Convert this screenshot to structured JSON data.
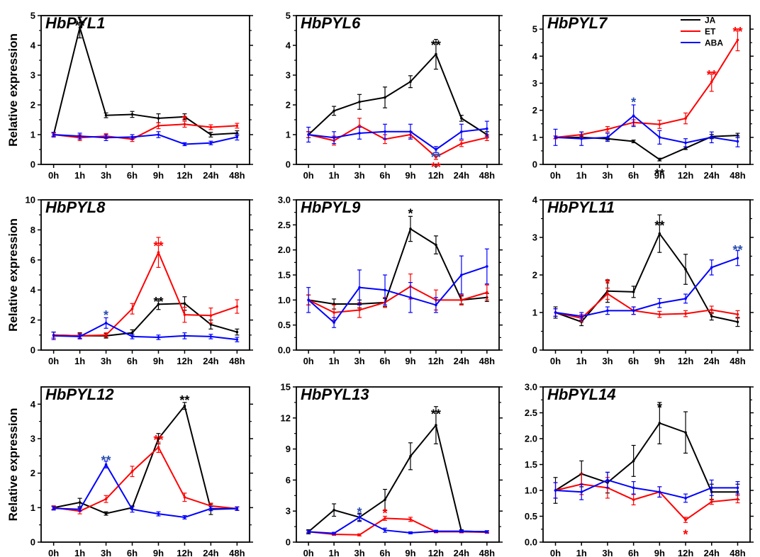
{
  "figure": {
    "ylabel": "Relative expression",
    "legend": [
      {
        "name": "JA",
        "color": "#000000"
      },
      {
        "name": "ET",
        "color": "#ff0000"
      },
      {
        "name": "ABA",
        "color": "#0000ff"
      }
    ]
  },
  "chart_data": [
    {
      "type": "line",
      "title": "HbPYL1",
      "ylabel": "Relative expression",
      "categories": [
        "0h",
        "1h",
        "3h",
        "6h",
        "9h",
        "12h",
        "24h",
        "48h"
      ],
      "ylim": [
        0,
        5
      ],
      "yticks": [
        0,
        1,
        2,
        3,
        4,
        5
      ],
      "ytick_labels": [
        "0",
        "1",
        "2",
        "3",
        "4",
        "5"
      ],
      "series": [
        {
          "name": "JA",
          "color": "#000000",
          "values": [
            1.0,
            4.6,
            1.65,
            1.68,
            1.55,
            1.6,
            1.0,
            1.05
          ],
          "errors": [
            0.05,
            0.35,
            0.08,
            0.1,
            0.15,
            0.1,
            0.08,
            0.08
          ]
        },
        {
          "name": "ET",
          "color": "#ff0000",
          "values": [
            1.0,
            0.9,
            0.95,
            0.85,
            1.3,
            1.35,
            1.25,
            1.3
          ],
          "errors": [
            0.05,
            0.1,
            0.08,
            0.08,
            0.1,
            0.1,
            0.08,
            0.08
          ]
        },
        {
          "name": "ABA",
          "color": "#0000ff",
          "values": [
            1.0,
            0.95,
            0.9,
            0.92,
            1.0,
            0.68,
            0.72,
            0.92
          ],
          "errors": [
            0.08,
            0.1,
            0.1,
            0.08,
            0.1,
            0.05,
            0.06,
            0.1
          ]
        }
      ],
      "annotations": [
        {
          "text": "**",
          "x": "1h",
          "y": 4.7,
          "color": "#000000"
        },
        {
          "text": "*",
          "x": "12h",
          "y": 1.55,
          "color": "#ff0000"
        }
      ]
    },
    {
      "type": "line",
      "title": "HbPYL6",
      "ylabel": "",
      "categories": [
        "0h",
        "1h",
        "3h",
        "6h",
        "9h",
        "12h",
        "24h",
        "48h"
      ],
      "ylim": [
        0,
        5
      ],
      "yticks": [
        0,
        1,
        2,
        3,
        4,
        5
      ],
      "ytick_labels": [
        "0",
        "1",
        "2",
        "3",
        "4",
        "5"
      ],
      "series": [
        {
          "name": "JA",
          "color": "#000000",
          "values": [
            1.0,
            1.8,
            2.1,
            2.25,
            2.78,
            3.7,
            1.55,
            1.0
          ],
          "errors": [
            0.1,
            0.15,
            0.25,
            0.35,
            0.2,
            0.5,
            0.1,
            0.1
          ]
        },
        {
          "name": "ET",
          "color": "#ff0000",
          "values": [
            1.0,
            0.8,
            1.3,
            0.85,
            1.0,
            0.25,
            0.7,
            0.9
          ],
          "errors": [
            0.1,
            0.15,
            0.25,
            0.15,
            0.1,
            0.08,
            0.1,
            0.1
          ]
        },
        {
          "name": "ABA",
          "color": "#0000ff",
          "values": [
            1.0,
            0.9,
            1.05,
            1.1,
            1.1,
            0.5,
            1.1,
            1.2
          ],
          "errors": [
            0.25,
            0.2,
            0.2,
            0.25,
            0.25,
            0.1,
            0.25,
            0.25
          ]
        }
      ],
      "annotations": [
        {
          "text": "**",
          "x": "12h",
          "y": 4.05,
          "color": "#000000"
        },
        {
          "text": "**",
          "x": "12h",
          "y": 0.28,
          "color": "#2a4fb0"
        },
        {
          "text": "**",
          "x": "12h",
          "y": -0.05,
          "color": "#ff0000"
        }
      ]
    },
    {
      "type": "line",
      "title": "HbPYL7",
      "ylabel": "",
      "categories": [
        "0h",
        "1h",
        "3h",
        "6h",
        "9h",
        "12h",
        "24h",
        "48h"
      ],
      "ylim": [
        0,
        5.5
      ],
      "yticks": [
        0,
        1,
        2,
        3,
        4,
        5
      ],
      "ytick_labels": [
        "0",
        "1",
        "2",
        "3",
        "4",
        "5"
      ],
      "series": [
        {
          "name": "JA",
          "color": "#000000",
          "values": [
            1.0,
            1.0,
            0.95,
            0.85,
            0.18,
            0.6,
            1.03,
            1.07
          ],
          "errors": [
            0.05,
            0.05,
            0.05,
            0.05,
            0.05,
            0.05,
            0.08,
            0.08
          ]
        },
        {
          "name": "ET",
          "color": "#ff0000",
          "values": [
            1.0,
            1.1,
            1.3,
            1.55,
            1.48,
            1.7,
            3.05,
            4.6
          ],
          "errors": [
            0.05,
            0.1,
            0.1,
            0.1,
            0.15,
            0.2,
            0.35,
            0.4
          ]
        },
        {
          "name": "ABA",
          "color": "#0000ff",
          "values": [
            1.0,
            0.95,
            1.0,
            1.8,
            1.0,
            0.8,
            1.0,
            0.85
          ],
          "errors": [
            0.3,
            0.25,
            0.15,
            0.4,
            0.25,
            0.15,
            0.2,
            0.2
          ]
        }
      ],
      "annotations": [
        {
          "text": "*",
          "x": "6h",
          "y": 2.35,
          "color": "#2a4fb0"
        },
        {
          "text": "**",
          "x": "9h",
          "y": -0.3,
          "color": "#000000"
        },
        {
          "text": "**",
          "x": "24h",
          "y": 3.35,
          "color": "#ff0000"
        },
        {
          "text": "**",
          "x": "48h",
          "y": 4.95,
          "color": "#ff0000"
        }
      ],
      "legend": [
        "JA",
        "ET",
        "ABA"
      ]
    },
    {
      "type": "line",
      "title": "HbPYL8",
      "ylabel": "Relative expression",
      "categories": [
        "0h",
        "1h",
        "3h",
        "6h",
        "9h",
        "12h",
        "24h",
        "48h"
      ],
      "ylim": [
        0,
        10
      ],
      "yticks": [
        0,
        2,
        4,
        6,
        8,
        10
      ],
      "ytick_labels": [
        "0",
        "2",
        "4",
        "6",
        "8",
        "10"
      ],
      "series": [
        {
          "name": "JA",
          "color": "#000000",
          "values": [
            1.0,
            0.95,
            0.95,
            1.15,
            3.05,
            3.1,
            1.7,
            1.2
          ],
          "errors": [
            0.2,
            0.2,
            0.15,
            0.2,
            0.35,
            0.45,
            0.3,
            0.2
          ]
        },
        {
          "name": "ET",
          "color": "#ff0000",
          "values": [
            1.0,
            0.95,
            1.0,
            2.75,
            6.5,
            2.35,
            2.3,
            2.9
          ],
          "errors": [
            0.2,
            0.15,
            0.15,
            0.35,
            1.0,
            0.5,
            0.5,
            0.45
          ]
        },
        {
          "name": "ABA",
          "color": "#0000ff",
          "values": [
            0.95,
            0.9,
            1.8,
            0.9,
            0.85,
            0.95,
            0.9,
            0.7
          ],
          "errors": [
            0.25,
            0.15,
            0.35,
            0.15,
            0.15,
            0.2,
            0.15,
            0.15
          ]
        }
      ],
      "annotations": [
        {
          "text": "*",
          "x": "3h",
          "y": 2.4,
          "color": "#2a4fb0"
        },
        {
          "text": "**",
          "x": "9h",
          "y": 7.0,
          "color": "#ff0000"
        },
        {
          "text": "**",
          "x": "9h",
          "y": 3.3,
          "color": "#000000"
        }
      ]
    },
    {
      "type": "line",
      "title": "HbPYL9",
      "ylabel": "",
      "categories": [
        "0h",
        "1h",
        "3h",
        "6h",
        "9h",
        "12h",
        "24h",
        "48h"
      ],
      "ylim": [
        0,
        3.0
      ],
      "yticks": [
        0,
        0.5,
        1.0,
        1.5,
        2.0,
        2.5,
        3.0
      ],
      "ytick_labels": [
        "0.0",
        "0.5",
        "1.0",
        "1.5",
        "2.0",
        "2.5",
        "3.0"
      ],
      "series": [
        {
          "name": "JA",
          "color": "#000000",
          "values": [
            1.0,
            0.92,
            0.92,
            0.95,
            2.42,
            2.1,
            1.0,
            1.05
          ],
          "errors": [
            0.1,
            0.1,
            0.08,
            0.08,
            0.25,
            0.18,
            0.08,
            0.08
          ]
        },
        {
          "name": "ET",
          "color": "#ff0000",
          "values": [
            1.0,
            0.75,
            0.8,
            0.95,
            1.27,
            1.0,
            1.0,
            1.15
          ],
          "errors": [
            0.1,
            0.15,
            0.15,
            0.1,
            0.25,
            0.2,
            0.1,
            0.15
          ]
        },
        {
          "name": "ABA",
          "color": "#0000ff",
          "values": [
            1.0,
            0.55,
            1.25,
            1.2,
            1.05,
            0.9,
            1.5,
            1.67
          ],
          "errors": [
            0.25,
            0.1,
            0.35,
            0.3,
            0.3,
            0.15,
            0.38,
            0.35
          ]
        }
      ],
      "annotations": [
        {
          "text": "*",
          "x": "9h",
          "y": 2.75,
          "color": "#000000"
        }
      ]
    },
    {
      "type": "line",
      "title": "HbPYL11",
      "ylabel": "",
      "categories": [
        "0h",
        "1h",
        "3h",
        "6h",
        "9h",
        "12h",
        "24h",
        "48h"
      ],
      "ylim": [
        0,
        4
      ],
      "yticks": [
        0,
        1,
        2,
        3,
        4
      ],
      "ytick_labels": [
        "0",
        "1",
        "2",
        "3",
        "4"
      ],
      "series": [
        {
          "name": "JA",
          "color": "#000000",
          "values": [
            1.0,
            0.75,
            1.57,
            1.55,
            3.1,
            2.15,
            0.9,
            0.75
          ],
          "errors": [
            0.15,
            0.1,
            0.3,
            0.15,
            0.5,
            0.4,
            0.1,
            0.12
          ]
        },
        {
          "name": "ET",
          "color": "#ff0000",
          "values": [
            1.0,
            0.85,
            1.5,
            1.05,
            0.95,
            0.97,
            1.07,
            0.95
          ],
          "errors": [
            0.1,
            0.1,
            0.15,
            0.1,
            0.08,
            0.08,
            0.1,
            0.1
          ]
        },
        {
          "name": "ABA",
          "color": "#0000ff",
          "values": [
            1.0,
            0.9,
            1.05,
            1.05,
            1.25,
            1.37,
            2.2,
            2.45
          ],
          "errors": [
            0.1,
            0.1,
            0.1,
            0.1,
            0.12,
            0.12,
            0.2,
            0.2
          ]
        }
      ],
      "annotations": [
        {
          "text": "*",
          "x": "3h",
          "y": 1.8,
          "color": "#ff0000"
        },
        {
          "text": "**",
          "x": "9h",
          "y": 3.35,
          "color": "#000000"
        },
        {
          "text": "**",
          "x": "48h",
          "y": 2.7,
          "color": "#2a4fb0"
        }
      ]
    },
    {
      "type": "line",
      "title": "HbPYL12",
      "ylabel": "Relative expression",
      "categories": [
        "0h",
        "1h",
        "3h",
        "6h",
        "9h",
        "12h",
        "24h",
        "48h"
      ],
      "ylim": [
        0,
        4.5
      ],
      "yticks": [
        0,
        1,
        2,
        3,
        4
      ],
      "ytick_labels": [
        "0",
        "1",
        "2",
        "3",
        "4"
      ],
      "series": [
        {
          "name": "JA",
          "color": "#000000",
          "values": [
            1.0,
            1.15,
            0.83,
            1.0,
            3.0,
            3.95,
            0.95,
            0.97
          ],
          "errors": [
            0.05,
            0.12,
            0.05,
            0.05,
            0.15,
            0.1,
            0.15,
            0.05
          ]
        },
        {
          "name": "ET",
          "color": "#ff0000",
          "values": [
            1.0,
            0.9,
            1.25,
            2.05,
            2.75,
            1.3,
            1.05,
            0.97
          ],
          "errors": [
            0.05,
            0.08,
            0.1,
            0.15,
            0.15,
            0.12,
            0.08,
            0.05
          ]
        },
        {
          "name": "ABA",
          "color": "#0000ff",
          "values": [
            0.98,
            0.95,
            2.25,
            0.95,
            0.82,
            0.72,
            0.97,
            0.97
          ],
          "errors": [
            0.05,
            0.05,
            0.1,
            0.08,
            0.06,
            0.05,
            0.06,
            0.05
          ]
        }
      ],
      "annotations": [
        {
          "text": "**",
          "x": "3h",
          "y": 2.4,
          "color": "#2a4fb0"
        },
        {
          "text": "**",
          "x": "9h",
          "y": 3.0,
          "color": "#ff0000"
        },
        {
          "text": "**",
          "x": "12h",
          "y": 4.15,
          "color": "#000000"
        }
      ]
    },
    {
      "type": "line",
      "title": "HbPYL13",
      "ylabel": "",
      "categories": [
        "0h",
        "1h",
        "3h",
        "6h",
        "9h",
        "12h",
        "24h",
        "48h"
      ],
      "ylim": [
        0,
        15
      ],
      "yticks": [
        0,
        3,
        6,
        9,
        12,
        15
      ],
      "ytick_labels": [
        "0",
        "3",
        "6",
        "9",
        "12",
        "15"
      ],
      "series": [
        {
          "name": "JA",
          "color": "#000000",
          "values": [
            1.0,
            3.1,
            2.4,
            4.1,
            8.3,
            11.3,
            1.05,
            1.0
          ],
          "errors": [
            0.2,
            0.6,
            0.4,
            1.0,
            1.3,
            1.8,
            0.15,
            0.1
          ]
        },
        {
          "name": "ET",
          "color": "#ff0000",
          "values": [
            1.0,
            0.75,
            0.7,
            2.3,
            2.2,
            1.0,
            1.0,
            0.95
          ],
          "errors": [
            0.1,
            0.1,
            0.1,
            0.2,
            0.2,
            0.1,
            0.1,
            0.1
          ]
        },
        {
          "name": "ABA",
          "color": "#0000ff",
          "values": [
            1.0,
            0.85,
            2.4,
            1.15,
            0.9,
            1.05,
            1.05,
            1.0
          ],
          "errors": [
            0.1,
            0.1,
            0.3,
            0.2,
            0.1,
            0.1,
            0.1,
            0.1
          ]
        }
      ],
      "annotations": [
        {
          "text": "*",
          "x": "3h",
          "y": 3.0,
          "color": "#2a4fb0"
        },
        {
          "text": "*",
          "x": "6h",
          "y": 2.9,
          "color": "#ff0000"
        },
        {
          "text": "**",
          "x": "12h",
          "y": 12.5,
          "color": "#000000"
        }
      ]
    },
    {
      "type": "line",
      "title": "HbPYL14",
      "ylabel": "",
      "categories": [
        "0h",
        "1h",
        "3h",
        "6h",
        "9h",
        "12h",
        "24h",
        "48h"
      ],
      "ylim": [
        0,
        3.0
      ],
      "yticks": [
        0,
        0.5,
        1.0,
        1.5,
        2.0,
        2.5,
        3.0
      ],
      "ytick_labels": [
        "0.0",
        "0.5",
        "1.0",
        "1.5",
        "2.0",
        "2.5",
        "3.0"
      ],
      "series": [
        {
          "name": "JA",
          "color": "#000000",
          "values": [
            1.0,
            1.32,
            1.15,
            1.57,
            2.3,
            2.12,
            0.97,
            0.97
          ],
          "errors": [
            0.25,
            0.25,
            0.2,
            0.3,
            0.4,
            0.4,
            0.15,
            0.15
          ]
        },
        {
          "name": "ET",
          "color": "#ff0000",
          "values": [
            1.0,
            1.12,
            1.05,
            0.82,
            0.97,
            0.43,
            0.78,
            0.83
          ],
          "errors": [
            0.15,
            0.2,
            0.2,
            0.1,
            0.1,
            0.05,
            0.05,
            0.07
          ]
        },
        {
          "name": "ABA",
          "color": "#0000ff",
          "values": [
            1.0,
            0.97,
            1.2,
            1.05,
            0.97,
            0.85,
            1.05,
            1.05
          ],
          "errors": [
            0.15,
            0.15,
            0.15,
            0.12,
            0.1,
            0.08,
            0.15,
            0.12
          ]
        }
      ],
      "annotations": [
        {
          "text": "*",
          "x": "9h",
          "y": 2.62,
          "color": "#000000"
        },
        {
          "text": "*",
          "x": "12h",
          "y": 0.17,
          "color": "#ff0000"
        }
      ]
    }
  ]
}
